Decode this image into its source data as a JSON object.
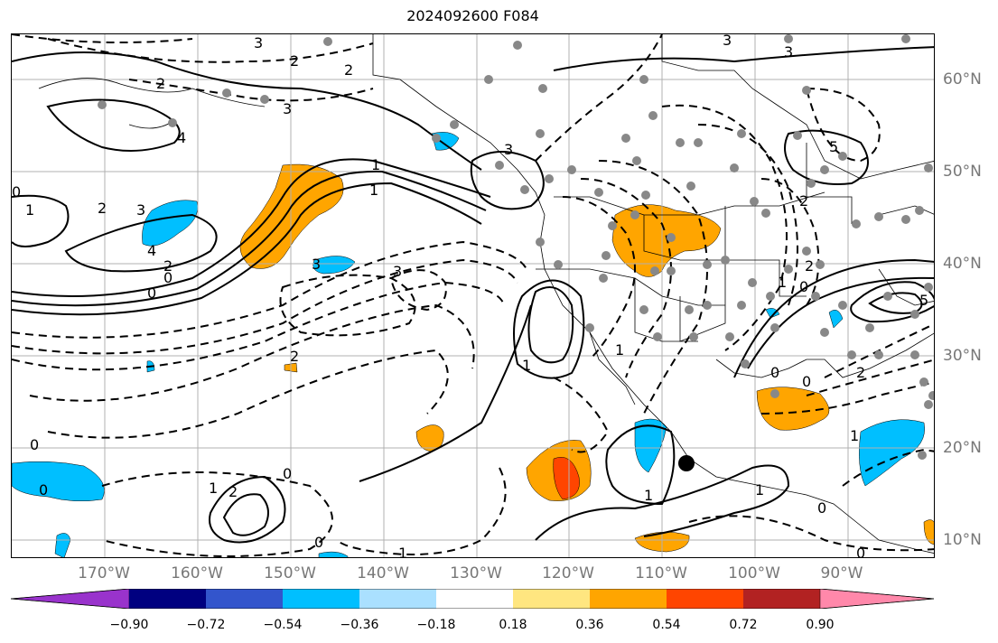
{
  "title": "2024092600 F084",
  "lon_labels": [
    "170°W",
    "160°W",
    "150°W",
    "140°W",
    "130°W",
    "120°W",
    "110°W",
    "100°W",
    "90°W"
  ],
  "lat_labels": [
    "60°N",
    "50°N",
    "40°N",
    "30°N",
    "20°N",
    "10°N"
  ],
  "colorbar": {
    "ticks": [
      "−0.90",
      "−0.72",
      "−0.54",
      "−0.36",
      "−0.18",
      "0.18",
      "0.36",
      "0.54",
      "0.72",
      "0.90"
    ],
    "colors": [
      "#9933cc",
      "#000080",
      "#3355cc",
      "#00bfff",
      "#aae0ff",
      "#ffffff",
      "#ffe680",
      "#ffa500",
      "#ff4500",
      "#b22222",
      "#ff88aa"
    ]
  },
  "contour_labels": [
    "3",
    "2",
    "2",
    "2",
    "3",
    "3",
    "1",
    "1",
    "1",
    "3",
    "4",
    "3",
    "2",
    "1",
    "0",
    "4",
    "0",
    "2",
    "0",
    "3",
    "2",
    "3",
    "3",
    "1",
    "0",
    "1",
    "2",
    "0",
    "1",
    "0",
    "1",
    "0",
    "2",
    "2",
    "0",
    "0",
    "5",
    "1",
    "5",
    "2",
    "0",
    "1",
    "1",
    "0",
    "0"
  ],
  "colors": {
    "negative_fill": "#00bfff",
    "positive_fill": "#ffa500",
    "strong_positive": "#ff4500",
    "stations": "#888888",
    "grid": "#b0b0b0"
  }
}
